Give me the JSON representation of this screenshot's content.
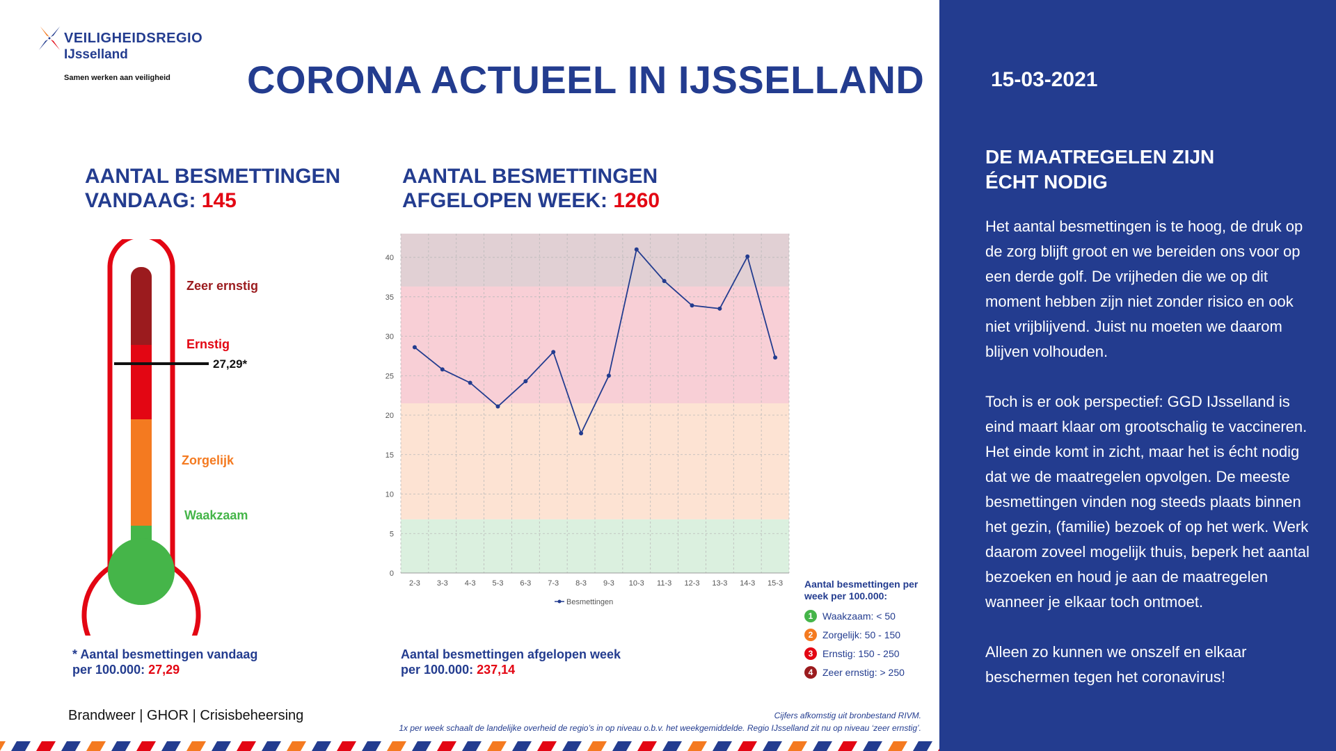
{
  "logo": {
    "name": "VEILIGHEIDSREGIO",
    "region": "IJsselland",
    "slogan": "Samen werken aan veiligheid"
  },
  "title": "CORONA ACTUEEL IN IJSSELLAND",
  "today": {
    "heading_line1": "AANTAL BESMETTINGEN",
    "heading_line2": "VANDAAG: ",
    "value": "145"
  },
  "week": {
    "heading_line1": "AANTAL BESMETTINGEN",
    "heading_line2": "AFGELOPEN WEEK: ",
    "value": "1260"
  },
  "thermometer": {
    "levels": [
      "Zeer ernstig",
      "Ernstig",
      "Zorgelijk",
      "Waakzaam"
    ],
    "marker_label": "27,29*",
    "marker_value": 27.29,
    "colors": {
      "zeer_ernstig": "#9b1b1e",
      "ernstig": "#e30613",
      "zorgelijk": "#f47a20",
      "waakzaam": "#45b549",
      "outline": "#e30613"
    }
  },
  "notes": {
    "today_line1": "* Aantal besmettingen vandaag",
    "today_line2": "per 100.000: ",
    "today_value": "27,29",
    "week_line1": "Aantal besmettingen afgelopen week",
    "week_line2": "per 100.000: ",
    "week_value": "237,14"
  },
  "legend": {
    "title": "Aantal besmettingen per week per 100.000:",
    "items": [
      {
        "num": "1",
        "label": "Waakzaam: < 50",
        "color": "#45b549"
      },
      {
        "num": "2",
        "label": "Zorgelijk: 50 - 150",
        "color": "#f47a20"
      },
      {
        "num": "3",
        "label": "Ernstig: 150 - 250",
        "color": "#e30613"
      },
      {
        "num": "4",
        "label": "Zeer ernstig: > 250",
        "color": "#9b1b1e"
      }
    ]
  },
  "footer": {
    "left": "Brandweer | GHOR | Crisisbeheersing",
    "source": "Cijfers afkomstig uit bronbestand RIVM.",
    "note": "1x per week schaalt de landelijke overheid de regio’s in op niveau o.b.v. het weekgemiddelde. Regio IJsselland zit nu op niveau ‘zeer ernstig’."
  },
  "panel": {
    "date": "15-03-2021",
    "heading_line1": "DE MAATREGELEN ZIJN",
    "heading_line2": "ÉCHT NODIG",
    "paragraphs": [
      "Het aantal besmettingen is te hoog, de druk op de zorg blijft groot en we bereiden ons voor op een derde golf. De vrijheden die we op dit moment hebben zijn niet zonder risico en ook niet vrijblijvend. Juist nu moeten we daarom blijven volhouden.",
      "Toch is er ook perspectief: GGD IJsselland is eind maart klaar om grootschalig te vaccineren. Het einde komt in zicht, maar het is écht nodig dat we de maatregelen opvolgen. De meeste besmettingen vinden nog steeds plaats binnen het gezin, (familie) bezoek of op het werk. Werk daarom zoveel mogelijk thuis, beperk het aantal bezoeken en houd je aan de maatregelen wanneer je elkaar toch ontmoet.",
      "Alleen zo kunnen we onszelf en elkaar beschermen tegen het coronavirus!"
    ],
    "background": "#233c8f"
  },
  "chart_data": {
    "type": "line",
    "categories": [
      "2-3",
      "3-3",
      "4-3",
      "5-3",
      "6-3",
      "7-3",
      "8-3",
      "9-3",
      "10-3",
      "11-3",
      "12-3",
      "13-3",
      "14-3",
      "15-3"
    ],
    "series": [
      {
        "name": "Besmettingen",
        "values": [
          28.6,
          25.8,
          24.1,
          21.1,
          24.3,
          28.0,
          17.7,
          25.0,
          41.0,
          37.0,
          33.9,
          33.5,
          40.1,
          27.3
        ],
        "color": "#233c8f"
      }
    ],
    "ylim": [
      0,
      43
    ],
    "yticks": [
      0,
      5,
      10,
      15,
      20,
      25,
      30,
      35,
      40
    ],
    "bands": [
      {
        "from": 0,
        "to": 6.8,
        "color": "#dbf0df"
      },
      {
        "from": 6.8,
        "to": 21.5,
        "color": "#fde3d3"
      },
      {
        "from": 21.5,
        "to": 36.3,
        "color": "#f8cfd6"
      },
      {
        "from": 36.3,
        "to": 43,
        "color": "#e1d0d4"
      }
    ],
    "grid": true,
    "legend": "bottom"
  }
}
